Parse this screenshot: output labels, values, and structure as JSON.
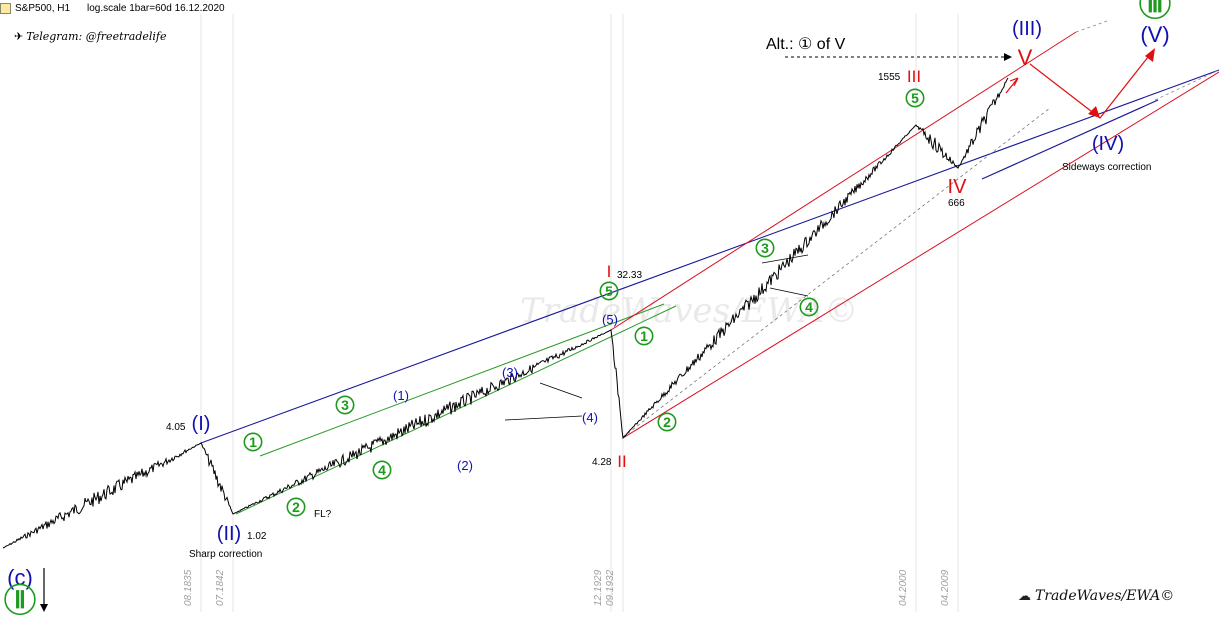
{
  "header": {
    "symbol": "S&P500, H1",
    "info": "log.scale 1bar=60d 16.12.2020",
    "telegram": "Telegram: @freetradelife"
  },
  "watermark": {
    "center": "TradeWaves/EWA©",
    "footer": "TradeWaves/EWA©"
  },
  "colors": {
    "blue": "#1010b0",
    "green": "#1e9a1e",
    "red": "#e01010",
    "navy_line": "#1a1a9a",
    "green_line": "#2a9a2a",
    "red_line": "#d81020",
    "price": "#000000"
  },
  "chart_data": {
    "type": "line",
    "title": "",
    "scale": "log",
    "series": [
      {
        "values": [
          {
            "x": "1835",
            "y": 1.6
          },
          {
            "x": "08.1835",
            "y": 4.05
          },
          {
            "x": "07.1842",
            "y": 1.02
          },
          {
            "x": "12.1929",
            "y": 32.33
          },
          {
            "x": "09.1932",
            "y": 4.28
          },
          {
            "x": "04.2000",
            "y": 1555
          },
          {
            "x": "04.2009",
            "y": 666
          },
          {
            "x": "12.2020",
            "y": 3700
          }
        ]
      }
    ],
    "x_tick_labels": [
      "08.1835",
      "07.1842",
      "12.1929",
      "09.1932",
      "04.2000",
      "04.2009"
    ],
    "price_labels": [
      {
        "id": "p405",
        "text": "4.05"
      },
      {
        "id": "p102",
        "text": "1.02"
      },
      {
        "id": "p3233",
        "text": "32.33"
      },
      {
        "id": "p428",
        "text": "4.28"
      },
      {
        "id": "p1555",
        "text": "1555"
      },
      {
        "id": "p666",
        "text": "666"
      }
    ],
    "wave_labels": [
      {
        "id": "w-c",
        "text": "(c)",
        "color": "blue",
        "size": 22
      },
      {
        "id": "w-II-corner",
        "text": "Ⅱ",
        "color": "green",
        "size": 24,
        "circle": true
      },
      {
        "id": "w-I",
        "text": "(I)",
        "color": "blue",
        "size": 20
      },
      {
        "id": "w-II",
        "text": "(II)",
        "color": "blue",
        "size": 20
      },
      {
        "id": "w-III",
        "text": "(III)",
        "color": "blue",
        "size": 20
      },
      {
        "id": "w-IV",
        "text": "(IV)",
        "color": "blue",
        "size": 20
      },
      {
        "id": "w-V",
        "text": "(V)",
        "color": "blue",
        "size": 22
      },
      {
        "id": "w-III-top",
        "text": "Ⅲ",
        "color": "green",
        "size": 24,
        "circle": true
      },
      {
        "id": "g1a",
        "text": "1",
        "color": "green",
        "size": 14,
        "circle": true
      },
      {
        "id": "g2a",
        "text": "2",
        "color": "green",
        "size": 14,
        "circle": true
      },
      {
        "id": "g3a",
        "text": "3",
        "color": "green",
        "size": 14,
        "circle": true
      },
      {
        "id": "g4a",
        "text": "4",
        "color": "green",
        "size": 14,
        "circle": true
      },
      {
        "id": "g5a",
        "text": "5",
        "color": "green",
        "size": 14,
        "circle": true
      },
      {
        "id": "g1b",
        "text": "1",
        "color": "green",
        "size": 14,
        "circle": true
      },
      {
        "id": "g2b",
        "text": "2",
        "color": "green",
        "size": 14,
        "circle": true
      },
      {
        "id": "g3b",
        "text": "3",
        "color": "green",
        "size": 14,
        "circle": true
      },
      {
        "id": "g4b",
        "text": "4",
        "color": "green",
        "size": 14,
        "circle": true
      },
      {
        "id": "g5b",
        "text": "5",
        "color": "green",
        "size": 14,
        "circle": true
      },
      {
        "id": "b1",
        "text": "(1)",
        "color": "blue",
        "size": 13
      },
      {
        "id": "b2",
        "text": "(2)",
        "color": "blue",
        "size": 13
      },
      {
        "id": "b3",
        "text": "(3)",
        "color": "blue",
        "size": 13
      },
      {
        "id": "b4",
        "text": "(4)",
        "color": "blue",
        "size": 13
      },
      {
        "id": "b5",
        "text": "(5)",
        "color": "blue",
        "size": 13
      },
      {
        "id": "r-I",
        "text": "I",
        "color": "red",
        "size": 17
      },
      {
        "id": "r-II",
        "text": "II",
        "color": "red",
        "size": 17
      },
      {
        "id": "r-III",
        "text": "III",
        "color": "red",
        "size": 17
      },
      {
        "id": "r-IV",
        "text": "IV",
        "color": "red",
        "size": 20
      },
      {
        "id": "r-V",
        "text": "V",
        "color": "red",
        "size": 22
      }
    ],
    "annotations": [
      {
        "id": "fl",
        "text": "FL?"
      },
      {
        "id": "sharp",
        "text": "Sharp correction"
      },
      {
        "id": "sideways",
        "text": "Sideways correction"
      },
      {
        "id": "alt",
        "text": "Alt.: ① of V"
      }
    ]
  }
}
